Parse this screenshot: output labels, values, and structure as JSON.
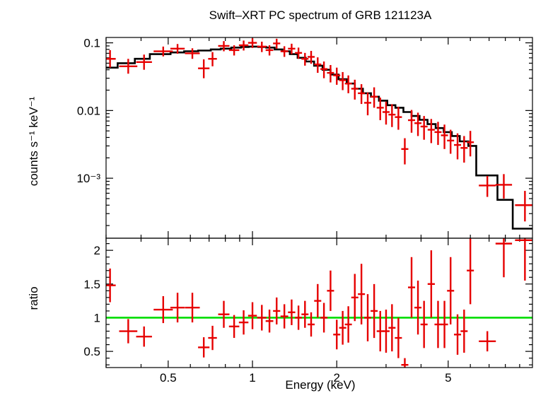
{
  "chart_data": [
    {
      "type": "scatter",
      "title": "Swift–XRT PC spectrum of GRB 121123A",
      "xlabel": "",
      "ylabel": "counts s⁻¹ keV⁻¹",
      "xscale": "log",
      "yscale": "log",
      "xlim": [
        0.3,
        10
      ],
      "ylim": [
        0.00013,
        0.12
      ],
      "y_ticks": [
        {
          "value": 0.1,
          "label": "0.1"
        },
        {
          "value": 0.01,
          "label": "0.01"
        },
        {
          "value": 0.001,
          "label": "10⁻³"
        }
      ],
      "colors": {
        "data": "#e60000",
        "model": "#000000"
      },
      "series": [
        {
          "name": "data",
          "x": [
            0.31,
            0.36,
            0.41,
            0.48,
            0.54,
            0.61,
            0.67,
            0.72,
            0.79,
            0.86,
            0.93,
            1.0,
            1.08,
            1.15,
            1.22,
            1.3,
            1.38,
            1.46,
            1.54,
            1.62,
            1.71,
            1.8,
            1.9,
            2.0,
            2.1,
            2.2,
            2.32,
            2.45,
            2.58,
            2.72,
            2.86,
            3.0,
            3.15,
            3.32,
            3.5,
            3.7,
            3.9,
            4.1,
            4.35,
            4.6,
            4.85,
            5.1,
            5.4,
            5.7,
            6.0,
            6.9,
            7.9,
            9.4
          ],
          "y": [
            0.058,
            0.045,
            0.052,
            0.075,
            0.082,
            0.07,
            0.042,
            0.058,
            0.09,
            0.078,
            0.092,
            0.1,
            0.088,
            0.078,
            0.098,
            0.075,
            0.082,
            0.071,
            0.058,
            0.062,
            0.048,
            0.041,
            0.036,
            0.033,
            0.028,
            0.025,
            0.021,
            0.018,
            0.013,
            0.016,
            0.011,
            0.0095,
            0.0087,
            0.008,
            0.0027,
            0.0072,
            0.0065,
            0.0058,
            0.0052,
            0.0048,
            0.0043,
            0.0036,
            0.0031,
            0.0028,
            0.0034,
            0.00078,
            0.0008,
            0.0004
          ],
          "y_err_low": [
            0.015,
            0.01,
            0.012,
            0.012,
            0.013,
            0.012,
            0.012,
            0.013,
            0.015,
            0.013,
            0.015,
            0.016,
            0.015,
            0.013,
            0.016,
            0.013,
            0.014,
            0.013,
            0.012,
            0.013,
            0.012,
            0.011,
            0.01,
            0.009,
            0.008,
            0.007,
            0.0065,
            0.0055,
            0.0045,
            0.005,
            0.0038,
            0.0033,
            0.003,
            0.0028,
            0.0011,
            0.0025,
            0.0023,
            0.0021,
            0.0019,
            0.0017,
            0.0016,
            0.0013,
            0.0012,
            0.0011,
            0.0013,
            0.00025,
            0.0003,
            0.00017
          ],
          "y_err_high": [
            0.02,
            0.013,
            0.015,
            0.013,
            0.014,
            0.013,
            0.015,
            0.015,
            0.016,
            0.014,
            0.016,
            0.017,
            0.016,
            0.014,
            0.017,
            0.014,
            0.015,
            0.014,
            0.013,
            0.014,
            0.013,
            0.012,
            0.011,
            0.01,
            0.009,
            0.008,
            0.0075,
            0.0065,
            0.0055,
            0.006,
            0.0045,
            0.004,
            0.0037,
            0.0034,
            0.0012,
            0.003,
            0.0028,
            0.0025,
            0.0023,
            0.002,
            0.0019,
            0.0016,
            0.0015,
            0.0014,
            0.0016,
            0.0003,
            0.00035,
            0.00025
          ]
        },
        {
          "name": "model",
          "step_edges": [
            0.3,
            0.33,
            0.38,
            0.43,
            0.51,
            0.57,
            0.64,
            0.71,
            0.77,
            0.84,
            0.91,
            0.97,
            1.05,
            1.12,
            1.2,
            1.28,
            1.36,
            1.45,
            1.55,
            1.66,
            1.78,
            1.9,
            2.03,
            2.17,
            2.32,
            2.48,
            2.65,
            2.83,
            3.03,
            3.24,
            3.46,
            3.7,
            3.95,
            4.22,
            4.51,
            4.82,
            5.15,
            5.5,
            5.9,
            6.3,
            7.5,
            8.5,
            10
          ],
          "values": [
            0.043,
            0.05,
            0.058,
            0.068,
            0.072,
            0.075,
            0.077,
            0.08,
            0.082,
            0.085,
            0.087,
            0.088,
            0.087,
            0.085,
            0.08,
            0.075,
            0.068,
            0.06,
            0.053,
            0.046,
            0.04,
            0.034,
            0.029,
            0.025,
            0.021,
            0.018,
            0.016,
            0.014,
            0.012,
            0.011,
            0.0095,
            0.0083,
            0.0073,
            0.0063,
            0.0055,
            0.0048,
            0.0042,
            0.0035,
            0.003,
            0.0011,
            0.00048,
            0.00018
          ]
        }
      ]
    },
    {
      "type": "scatter",
      "title": "",
      "xlabel": "Energy (keV)",
      "ylabel": "ratio",
      "xscale": "log",
      "yscale": "linear",
      "xlim": [
        0.3,
        10
      ],
      "ylim": [
        0.26,
        2.18
      ],
      "x_ticks": [
        {
          "value": 0.5,
          "label": "0.5"
        },
        {
          "value": 1,
          "label": "1"
        },
        {
          "value": 2,
          "label": "2"
        },
        {
          "value": 5,
          "label": "5"
        }
      ],
      "y_ticks": [
        {
          "value": 0.5,
          "label": "0.5"
        },
        {
          "value": 1,
          "label": "1"
        },
        {
          "value": 1.5,
          "label": "1.5"
        },
        {
          "value": 2,
          "label": "2"
        }
      ],
      "reference_line": {
        "y": 1,
        "color": "#00dd00"
      },
      "colors": {
        "data": "#e60000"
      },
      "series": [
        {
          "name": "ratio",
          "x": [
            0.31,
            0.36,
            0.41,
            0.48,
            0.54,
            0.61,
            0.67,
            0.72,
            0.79,
            0.86,
            0.93,
            1.0,
            1.08,
            1.15,
            1.22,
            1.3,
            1.38,
            1.46,
            1.54,
            1.62,
            1.71,
            1.8,
            1.9,
            2.0,
            2.1,
            2.2,
            2.32,
            2.45,
            2.58,
            2.72,
            2.86,
            3.0,
            3.15,
            3.32,
            3.5,
            3.7,
            3.9,
            4.1,
            4.35,
            4.6,
            4.85,
            5.1,
            5.4,
            5.7,
            6.0,
            6.9,
            7.9,
            9.4
          ],
          "y": [
            1.48,
            0.8,
            0.72,
            1.12,
            1.15,
            1.15,
            0.56,
            0.7,
            1.05,
            0.87,
            0.93,
            1.03,
            1.0,
            0.95,
            1.1,
            1.02,
            1.08,
            1.0,
            1.05,
            0.9,
            1.25,
            1.0,
            1.4,
            0.75,
            0.85,
            0.9,
            1.3,
            1.35,
            1.0,
            1.1,
            0.8,
            0.8,
            0.85,
            0.7,
            0.3,
            1.45,
            1.15,
            0.9,
            1.5,
            0.9,
            0.9,
            1.4,
            0.75,
            0.8,
            1.7,
            0.65,
            2.1,
            2.15
          ],
          "y_err": [
            0.25,
            0.18,
            0.15,
            0.2,
            0.22,
            0.22,
            0.15,
            0.18,
            0.2,
            0.17,
            0.18,
            0.2,
            0.19,
            0.17,
            0.2,
            0.18,
            0.19,
            0.18,
            0.2,
            0.18,
            0.25,
            0.22,
            0.3,
            0.22,
            0.25,
            0.27,
            0.35,
            0.45,
            0.35,
            0.4,
            0.3,
            0.32,
            0.35,
            0.3,
            0.1,
            0.45,
            0.4,
            0.35,
            0.5,
            0.35,
            0.35,
            0.5,
            0.3,
            0.32,
            0.5,
            0.15,
            0.5,
            0.6
          ]
        }
      ]
    }
  ]
}
